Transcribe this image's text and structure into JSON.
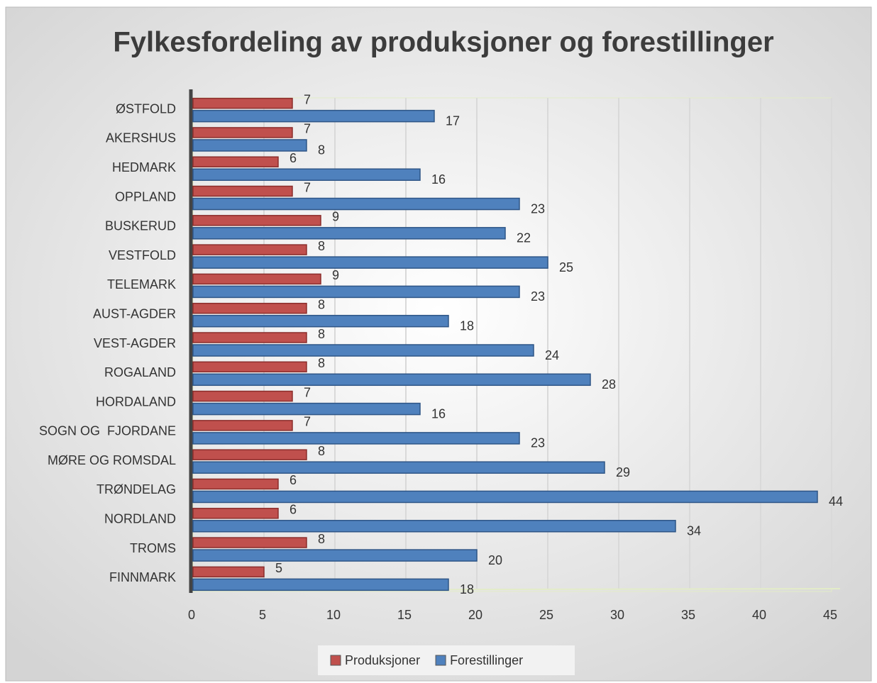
{
  "chart_data": {
    "type": "hbar",
    "title": "Fylkesfordeling av produksjoner og forestillinger",
    "categories": [
      "ØSTFOLD",
      "AKERSHUS",
      "HEDMARK",
      "OPPLAND",
      "BUSKERUD",
      "VESTFOLD",
      "TELEMARK",
      "AUST-AGDER",
      "VEST-AGDER",
      "ROGALAND",
      "HORDALAND",
      "SOGN OG  FJORDANE",
      "MØRE OG ROMSDAL",
      "TRØNDELAG",
      "NORDLAND",
      "TROMS",
      "FINNMARK"
    ],
    "series": [
      {
        "name": "Produksjoner",
        "color": "#c0504d",
        "values": [
          7,
          7,
          6,
          7,
          9,
          8,
          9,
          8,
          8,
          8,
          7,
          7,
          8,
          6,
          6,
          8,
          5
        ]
      },
      {
        "name": "Forestillinger",
        "color": "#4f81bd",
        "values": [
          17,
          8,
          16,
          23,
          22,
          25,
          23,
          18,
          24,
          28,
          16,
          23,
          29,
          44,
          34,
          20,
          18
        ]
      }
    ],
    "xlim": [
      0,
      45
    ],
    "xticks": [
      0,
      5,
      10,
      15,
      20,
      25,
      30,
      35,
      40,
      45
    ],
    "grid": true,
    "legend": "bottom"
  }
}
